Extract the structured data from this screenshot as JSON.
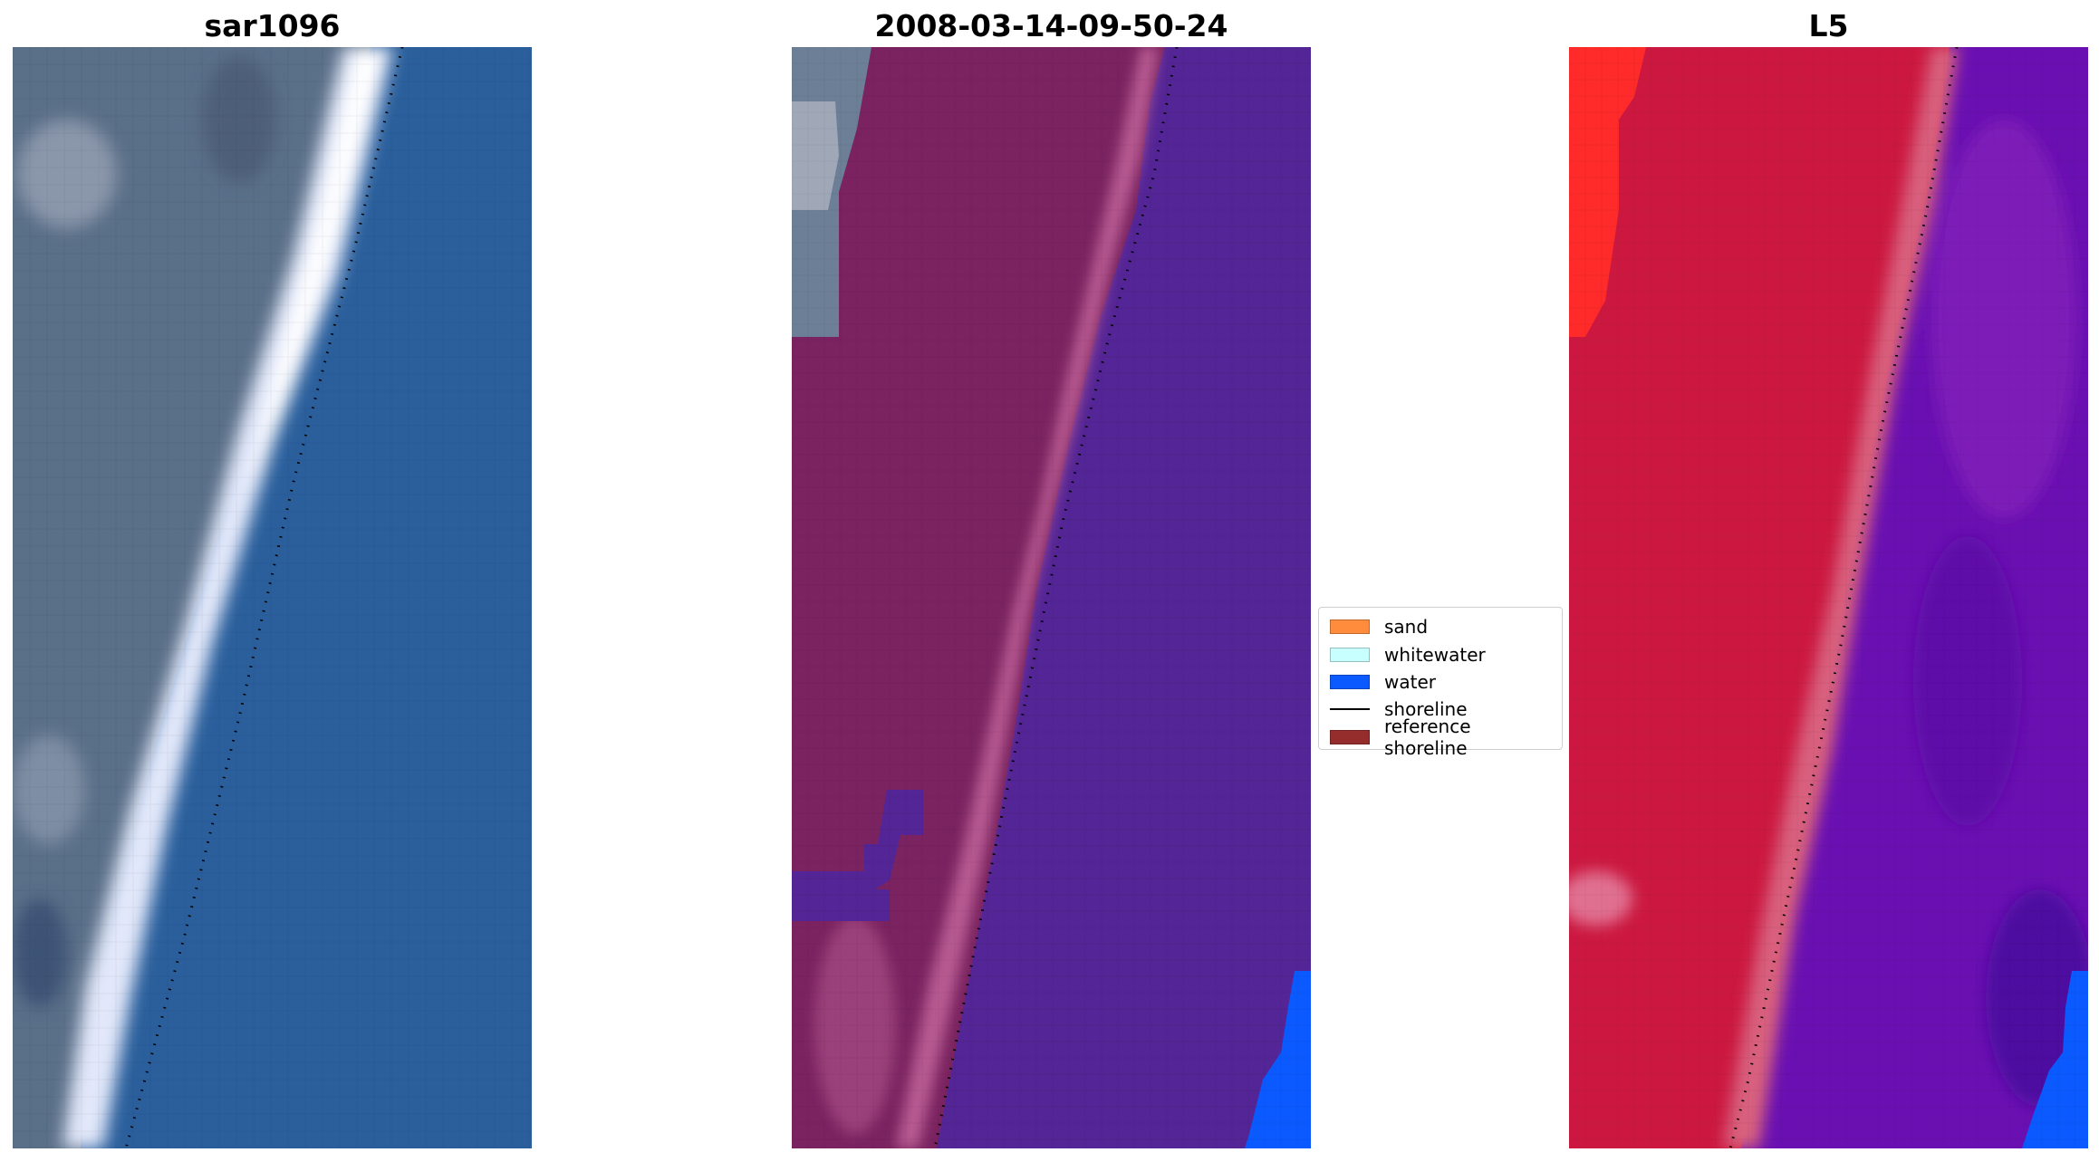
{
  "panels": [
    {
      "id": "rgb",
      "title": "sar1096"
    },
    {
      "id": "classified",
      "title": "2008-03-14-09-50-24"
    },
    {
      "id": "index",
      "title": "L5"
    }
  ],
  "legend": {
    "items": [
      {
        "label": "sand",
        "kind": "patch",
        "color": "#ff8c3c"
      },
      {
        "label": "whitewater",
        "kind": "patch",
        "color": "#c8ffff"
      },
      {
        "label": "water",
        "kind": "patch",
        "color": "#0a5aff"
      },
      {
        "label": "shoreline",
        "kind": "line",
        "color": "#000000"
      },
      {
        "label": "reference shoreline",
        "kind": "patch",
        "color": "#962d2d"
      }
    ]
  },
  "colors": {
    "rgb_land": "#5a6f88",
    "rgb_water": "#2a5f9c",
    "rgb_white": "#ecf0ff",
    "class_land": "#7a2360",
    "class_beach": "#b85a92",
    "class_water": "#542596",
    "class_blue": "#0a5aff",
    "index_red": "#cc1840",
    "index_bright": "#ff2a2a",
    "index_pink": "#d8607e",
    "index_water": "#6a10b2",
    "shoreline": "#000000"
  }
}
